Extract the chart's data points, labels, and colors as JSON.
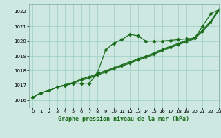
{
  "title": "Graphe pression niveau de la mer (hPa)",
  "bg_color": "#cce8e0",
  "grid_color": "#9ecec4",
  "line_color": "#1a6b1a",
  "xlim": [
    -0.5,
    23
  ],
  "ylim": [
    1015.5,
    1022.5
  ],
  "yticks": [
    1016,
    1017,
    1018,
    1019,
    1020,
    1021,
    1022
  ],
  "xticks": [
    0,
    1,
    2,
    3,
    4,
    5,
    6,
    7,
    8,
    9,
    10,
    11,
    12,
    13,
    14,
    15,
    16,
    17,
    18,
    19,
    20,
    21,
    22,
    23
  ],
  "line_straight": [
    1016.2,
    1016.5,
    1016.65,
    1016.9,
    1017.05,
    1017.2,
    1017.4,
    1017.55,
    1017.75,
    1017.95,
    1018.15,
    1018.35,
    1018.55,
    1018.75,
    1018.95,
    1019.15,
    1019.4,
    1019.6,
    1019.8,
    1020.0,
    1020.2,
    1020.7,
    1021.3,
    1022.1
  ],
  "line_straight2": [
    1016.2,
    1016.5,
    1016.65,
    1016.9,
    1017.05,
    1017.2,
    1017.45,
    1017.6,
    1017.8,
    1018.0,
    1018.2,
    1018.4,
    1018.6,
    1018.8,
    1019.0,
    1019.2,
    1019.45,
    1019.65,
    1019.85,
    1020.05,
    1020.25,
    1020.75,
    1021.35,
    1022.15
  ],
  "line_straight3": [
    1016.2,
    1016.5,
    1016.65,
    1016.9,
    1017.0,
    1017.15,
    1017.35,
    1017.5,
    1017.7,
    1017.9,
    1018.1,
    1018.3,
    1018.5,
    1018.7,
    1018.9,
    1019.1,
    1019.35,
    1019.55,
    1019.75,
    1019.95,
    1020.15,
    1020.65,
    1021.25,
    1022.05
  ],
  "line_bumpy": [
    1016.2,
    1016.5,
    1016.65,
    1016.9,
    1017.0,
    1017.15,
    1017.15,
    1017.15,
    1017.85,
    1019.4,
    1019.85,
    1020.1,
    1020.45,
    1020.35,
    1020.0,
    1020.0,
    1020.0,
    1020.05,
    1020.1,
    1020.15,
    1020.2,
    1021.0,
    1021.85,
    1022.1
  ]
}
